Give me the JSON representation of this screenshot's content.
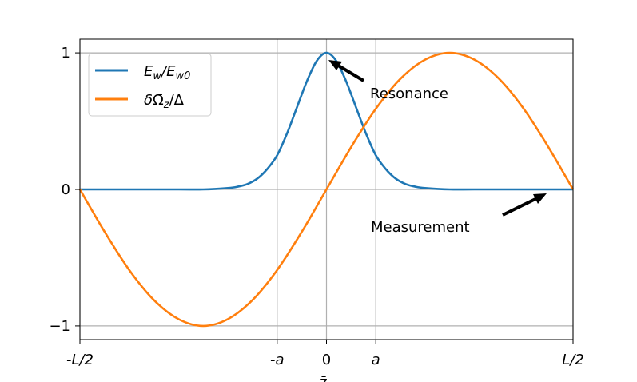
{
  "chart_data": {
    "type": "line",
    "xlabel": "z̄",
    "ylabel": "",
    "xlim": [
      -0.5,
      0.5
    ],
    "ylim": [
      -1.1,
      1.1
    ],
    "grid": true,
    "legend_position": "top-left",
    "xticks": [
      {
        "value": -0.5,
        "label": "-L/2"
      },
      {
        "value": -0.1,
        "label": "-a"
      },
      {
        "value": 0,
        "label": "0"
      },
      {
        "value": 0.1,
        "label": "a"
      },
      {
        "value": 0.5,
        "label": "L/2"
      }
    ],
    "yticks": [
      {
        "value": -1,
        "label": "−1"
      },
      {
        "value": 0,
        "label": "0"
      },
      {
        "value": 1,
        "label": "1"
      }
    ],
    "series": [
      {
        "name": "E_w/E_w0",
        "color": "#1f77b4",
        "x": [
          -0.5,
          -0.4,
          -0.3,
          -0.25,
          -0.2,
          -0.18,
          -0.16,
          -0.14,
          -0.12,
          -0.1,
          -0.08,
          -0.06,
          -0.04,
          -0.02,
          0,
          0.02,
          0.04,
          0.06,
          0.08,
          0.1,
          0.12,
          0.14,
          0.16,
          0.18,
          0.2,
          0.25,
          0.3,
          0.4,
          0.5
        ],
        "values": [
          0,
          0,
          0,
          0,
          0.01,
          0.02,
          0.04,
          0.08,
          0.15,
          0.25,
          0.41,
          0.6,
          0.79,
          0.94,
          1.0,
          0.94,
          0.79,
          0.6,
          0.41,
          0.25,
          0.15,
          0.08,
          0.04,
          0.02,
          0.01,
          0,
          0,
          0,
          0
        ]
      },
      {
        "name": "δΩ̄_z/Δ",
        "color": "#ff7f0e",
        "x": [
          -0.5,
          -0.45,
          -0.4,
          -0.35,
          -0.3,
          -0.25,
          -0.2,
          -0.15,
          -0.1,
          -0.05,
          0,
          0.05,
          0.1,
          0.15,
          0.2,
          0.25,
          0.3,
          0.35,
          0.4,
          0.45,
          0.5
        ],
        "values": [
          0,
          -0.31,
          -0.59,
          -0.81,
          -0.95,
          -1.0,
          -0.95,
          -0.81,
          -0.59,
          -0.31,
          0,
          0.31,
          0.59,
          0.81,
          0.95,
          1.0,
          0.95,
          0.81,
          0.59,
          0.31,
          0
        ]
      }
    ],
    "annotations": [
      {
        "text": "Resonance",
        "x": 0.0,
        "y": 1.0
      },
      {
        "text": "Measurement",
        "x": 0.5,
        "y": 0.0
      }
    ]
  },
  "legend": {
    "series1_main": "E",
    "series1_sub": "w",
    "series1_slash": "/E",
    "series1_sub2": "w0",
    "series2_delta": "δ",
    "series2_omega": "Ω̄",
    "series2_sub": "z",
    "series2_tail": "/Δ"
  }
}
